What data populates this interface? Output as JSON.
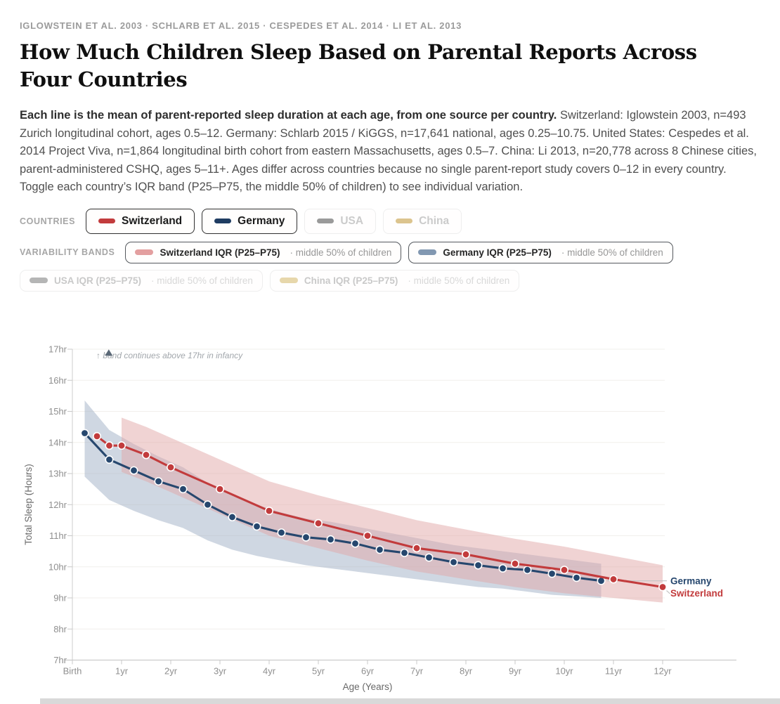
{
  "kicker": "IGLOWSTEIN ET AL. 2003 · SCHLARB ET AL. 2015 · CESPEDES ET AL. 2014 · LI ET AL. 2013",
  "title": "How Much Children Sleep Based on Parental Reports Across Four Countries",
  "description": {
    "lead": "Each line is the mean of parent-reported sleep duration at each age, from one source per country.",
    "body": " Switzerland: Iglowstein 2003, n=493 Zurich longitudinal cohort, ages 0.5–12. Germany: Schlarb 2015 / KiGGS, n=17,641 national, ages 0.25–10.75. United States: Cespedes et al. 2014 Project Viva, n=1,864 longitudinal birth cohort from eastern Massachusetts, ages 0.5–7. China: Li 2013, n=20,778 across 8 Chinese cities, parent-administered CSHQ, ages 5–11+. Ages differ across countries because no single parent-report study covers 0–12 in every country. Toggle each country’s IQR band (P25–P75, the middle 50% of children) to see individual variation."
  },
  "controls": {
    "countries_label": "COUNTRIES",
    "bands_label": "VARIABILITY BANDS",
    "countries": [
      {
        "id": "switzerland",
        "label": "Switzerland",
        "color": "#c23b3c",
        "active": true
      },
      {
        "id": "germany",
        "label": "Germany",
        "color": "#1f3c61",
        "active": true
      },
      {
        "id": "usa",
        "label": "USA",
        "color": "#9a9a9a",
        "active": false
      },
      {
        "id": "china",
        "label": "China",
        "color": "#dcc48e",
        "active": false
      }
    ],
    "bands": [
      {
        "id": "switzerland-iqr",
        "label": "Switzerland IQR (P25–P75)",
        "suffix": "· middle 50% of children",
        "color": "#e39f9f",
        "active": true
      },
      {
        "id": "germany-iqr",
        "label": "Germany IQR (P25–P75)",
        "suffix": "· middle 50% of children",
        "color": "#8298b1",
        "active": true
      },
      {
        "id": "usa-iqr",
        "label": "USA IQR (P25–P75)",
        "suffix": "· middle 50% of children",
        "color": "#b5b5b5",
        "active": false
      },
      {
        "id": "china-iqr",
        "label": "China IQR (P25–P75)",
        "suffix": "· middle 50% of children",
        "color": "#e7d7ab",
        "active": false
      }
    ]
  },
  "chart_data": {
    "type": "line",
    "title": "",
    "xlabel": "Age (Years)",
    "ylabel": "Total Sleep (Hours)",
    "xlim": [
      0,
      12
    ],
    "ylim": [
      7,
      17
    ],
    "grid": true,
    "x_axis": {
      "title": "Age (Years)",
      "tick_values": [
        0,
        1,
        2,
        3,
        4,
        5,
        6,
        7,
        8,
        9,
        10,
        11,
        12
      ],
      "tick_labels": [
        "Birth",
        "1yr",
        "2yr",
        "3yr",
        "4yr",
        "5yr",
        "6yr",
        "7yr",
        "8yr",
        "9yr",
        "10yr",
        "11yr",
        "12yr"
      ]
    },
    "y_axis": {
      "title": "Total Sleep (Hours)",
      "tick_values": [
        7,
        8,
        9,
        10,
        11,
        12,
        13,
        14,
        15,
        16,
        17
      ],
      "tick_labels": [
        "7hr",
        "8hr",
        "9hr",
        "10hr",
        "11hr",
        "12hr",
        "13hr",
        "14hr",
        "15hr",
        "16hr",
        "17hr"
      ]
    },
    "annotation": {
      "text": "↑ band continues above 17hr in infancy",
      "marker_age": 0.74,
      "marker_hr": 16.95
    },
    "bands": [
      {
        "name": "Germany IQR (P25–P75)",
        "color": "#9fb0c6",
        "opacity": 0.5,
        "x": [
          0.25,
          0.75,
          1.25,
          1.75,
          2.25,
          2.75,
          3.25,
          3.75,
          4.25,
          4.75,
          5.25,
          5.75,
          6.25,
          6.75,
          7.25,
          7.75,
          8.25,
          8.75,
          9.25,
          9.75,
          10.25,
          10.75
        ],
        "hi": [
          15.35,
          14.4,
          13.95,
          13.55,
          13.2,
          12.7,
          12.3,
          12.0,
          11.75,
          11.55,
          11.45,
          11.3,
          11.15,
          11.0,
          10.85,
          10.7,
          10.6,
          10.5,
          10.4,
          10.3,
          10.2,
          10.1
        ],
        "lo": [
          12.9,
          12.15,
          11.8,
          11.5,
          11.25,
          10.85,
          10.55,
          10.35,
          10.2,
          10.05,
          9.95,
          9.85,
          9.75,
          9.65,
          9.55,
          9.45,
          9.35,
          9.3,
          9.2,
          9.1,
          9.05,
          9.0
        ]
      },
      {
        "name": "Switzerland IQR (P25–P75)",
        "color": "#e2a8a8",
        "opacity": 0.5,
        "x": [
          1,
          1.5,
          2,
          3,
          4,
          5,
          6,
          7,
          8,
          9,
          10,
          11,
          12
        ],
        "hi": [
          14.8,
          14.5,
          14.15,
          13.45,
          12.75,
          12.3,
          11.9,
          11.5,
          11.2,
          10.9,
          10.65,
          10.35,
          10.05
        ],
        "lo": [
          13.05,
          12.75,
          12.4,
          11.7,
          11.0,
          10.6,
          10.2,
          9.85,
          9.6,
          9.35,
          9.15,
          9.0,
          8.85
        ]
      }
    ],
    "series": [
      {
        "name": "Germany",
        "end_label": "Germany",
        "color": "#26476e",
        "x": [
          0.25,
          0.75,
          1.25,
          1.75,
          2.25,
          2.75,
          3.25,
          3.75,
          4.25,
          4.75,
          5.25,
          5.75,
          6.25,
          6.75,
          7.25,
          7.75,
          8.25,
          8.75,
          9.25,
          9.75,
          10.25,
          10.75
        ],
        "y": [
          14.3,
          13.45,
          13.1,
          12.75,
          12.5,
          12.0,
          11.6,
          11.3,
          11.1,
          10.95,
          10.88,
          10.75,
          10.55,
          10.45,
          10.3,
          10.15,
          10.05,
          9.95,
          9.9,
          9.78,
          9.65,
          9.55
        ]
      },
      {
        "name": "Switzerland",
        "end_label": "Switzerland",
        "color": "#c23b3c",
        "x": [
          0.5,
          0.75,
          1,
          1.5,
          2,
          3,
          4,
          5,
          6,
          7,
          8,
          9,
          10,
          11,
          12
        ],
        "y": [
          14.2,
          13.9,
          13.9,
          13.6,
          13.2,
          12.5,
          11.8,
          11.4,
          11.0,
          10.6,
          10.4,
          10.1,
          9.9,
          9.6,
          9.35
        ]
      }
    ]
  }
}
